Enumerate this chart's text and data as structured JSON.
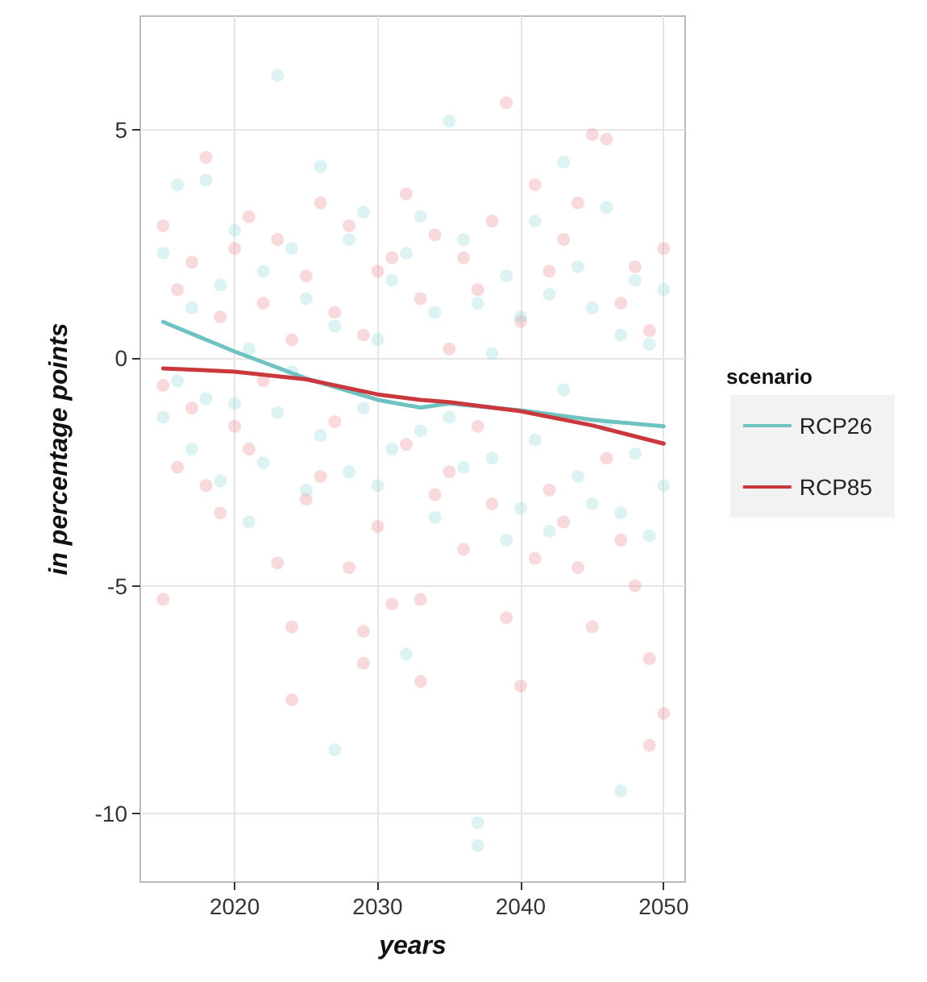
{
  "chart_data": {
    "type": "scatter",
    "xlabel": "years",
    "ylabel": "in percentage points",
    "legend_title": "scenario",
    "legend": "right",
    "grid": true,
    "xlim": [
      2013.4,
      2051.5
    ],
    "xticks": [
      2020,
      2030,
      2040,
      2050
    ],
    "ylim": [
      -11.5,
      7.5
    ],
    "yticks": [
      -10,
      -5,
      0,
      5
    ],
    "series": [
      {
        "marker": "circle",
        "color": "#e8868c",
        "x": [
          2015,
          2015,
          2015,
          2016,
          2016,
          2017,
          2017,
          2018,
          2018,
          2019,
          2019,
          2020,
          2020,
          2021,
          2021,
          2022,
          2022,
          2023,
          2023,
          2024,
          2024,
          2024,
          2025,
          2025,
          2026,
          2026,
          2027,
          2027,
          2028,
          2028,
          2029,
          2029,
          2029,
          2030,
          2030,
          2031,
          2031,
          2032,
          2032,
          2033,
          2033,
          2033,
          2034,
          2034,
          2035,
          2035,
          2036,
          2036,
          2037,
          2037,
          2038,
          2038,
          2039,
          2039,
          2040,
          2040,
          2041,
          2041,
          2042,
          2042,
          2043,
          2043,
          2044,
          2044,
          2045,
          2045,
          2046,
          2046,
          2047,
          2047,
          2048,
          2048,
          2049,
          2049,
          2049,
          2050,
          2050
        ],
        "values": [
          2.9,
          -0.6,
          -5.3,
          1.5,
          -2.4,
          -1.1,
          2.1,
          4.4,
          -2.8,
          0.9,
          -3.4,
          2.4,
          -1.5,
          3.1,
          -2.0,
          -0.5,
          1.2,
          -4.5,
          2.6,
          -5.9,
          -7.5,
          0.4,
          1.8,
          -3.1,
          3.4,
          -2.6,
          -1.4,
          1.0,
          2.9,
          -4.6,
          -6.0,
          -6.7,
          0.5,
          1.9,
          -3.7,
          -5.4,
          2.2,
          3.6,
          -1.9,
          -5.3,
          -7.1,
          1.3,
          2.7,
          -3.0,
          -2.5,
          0.2,
          2.2,
          -4.2,
          -1.5,
          1.5,
          3.0,
          -3.2,
          5.6,
          -5.7,
          -7.2,
          0.8,
          -4.4,
          3.8,
          -2.9,
          1.9,
          2.6,
          -3.6,
          -4.6,
          3.4,
          4.9,
          -5.9,
          4.8,
          -2.2,
          -4.0,
          1.2,
          -5.0,
          2.0,
          -8.5,
          -6.6,
          0.6,
          -7.8,
          2.4
        ]
      },
      {
        "marker": "circle",
        "color": "#8fd3d3",
        "x": [
          2015,
          2015,
          2016,
          2016,
          2017,
          2017,
          2018,
          2018,
          2019,
          2019,
          2020,
          2020,
          2021,
          2021,
          2022,
          2022,
          2023,
          2023,
          2024,
          2024,
          2025,
          2025,
          2026,
          2026,
          2027,
          2027,
          2028,
          2028,
          2029,
          2029,
          2030,
          2030,
          2031,
          2031,
          2032,
          2032,
          2033,
          2033,
          2034,
          2034,
          2035,
          2035,
          2036,
          2036,
          2037,
          2037,
          2037,
          2038,
          2038,
          2039,
          2039,
          2040,
          2040,
          2041,
          2041,
          2042,
          2042,
          2043,
          2043,
          2044,
          2044,
          2045,
          2045,
          2046,
          2046,
          2047,
          2047,
          2047,
          2048,
          2048,
          2049,
          2049,
          2050,
          2050
        ],
        "values": [
          2.3,
          -1.3,
          3.8,
          -0.5,
          -2.0,
          1.1,
          3.9,
          -0.9,
          1.6,
          -2.7,
          -1.0,
          2.8,
          0.2,
          -3.6,
          1.9,
          -2.3,
          6.2,
          -1.2,
          -0.3,
          2.4,
          1.3,
          -2.9,
          4.2,
          -1.7,
          -8.6,
          0.7,
          2.6,
          -2.5,
          3.2,
          -1.1,
          -2.8,
          0.4,
          1.7,
          -2.0,
          -6.5,
          2.3,
          3.1,
          -1.6,
          -3.5,
          1.0,
          5.2,
          -1.3,
          2.6,
          -2.4,
          -10.2,
          -10.7,
          1.2,
          -2.2,
          0.1,
          1.8,
          -4.0,
          -3.3,
          0.9,
          3.0,
          -1.8,
          -3.8,
          1.4,
          4.3,
          -0.7,
          -2.6,
          2.0,
          1.1,
          -3.2,
          3.3,
          -1.5,
          -9.5,
          -3.4,
          0.5,
          1.7,
          -2.1,
          -3.9,
          0.3,
          1.5,
          -2.8
        ]
      },
      {
        "type": "line",
        "marker": "none",
        "name": "RCP26",
        "color": "#6fc2c2",
        "x": [
          2015,
          2020,
          2025,
          2030,
          2033,
          2035,
          2040,
          2045,
          2050
        ],
        "values": [
          0.79,
          0.14,
          -0.45,
          -0.92,
          -1.09,
          -1.0,
          -1.15,
          -1.36,
          -1.5
        ]
      },
      {
        "type": "line",
        "marker": "none",
        "name": "RCP85",
        "color": "#c8383d",
        "x": [
          2015,
          2020,
          2025,
          2030,
          2033,
          2035,
          2040,
          2045,
          2050
        ],
        "values": [
          -0.23,
          -0.3,
          -0.47,
          -0.8,
          -0.92,
          -0.97,
          -1.17,
          -1.48,
          -1.88
        ]
      }
    ]
  }
}
